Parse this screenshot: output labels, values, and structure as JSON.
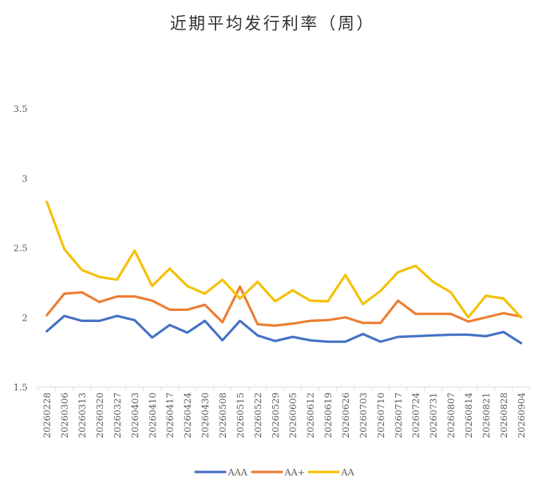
{
  "chart_data": {
    "type": "line",
    "title": "近期平均发行利率（周）",
    "xlabel": "",
    "ylabel": "",
    "ylim": [
      1.5,
      3.5
    ],
    "yticks": [
      "1.5",
      "2",
      "2.5",
      "3",
      "3.5"
    ],
    "grid": false,
    "legend_position": "bottom",
    "categories": [
      "20260228",
      "20260306",
      "20260313",
      "20260320",
      "20260327",
      "20260403",
      "20260410",
      "20260417",
      "20260424",
      "20260430",
      "20260508",
      "20260515",
      "20260522",
      "20260529",
      "20260605",
      "20260612",
      "20260619",
      "20260626",
      "20260703",
      "20260710",
      "20260717",
      "20260724",
      "20260731",
      "20260807",
      "20260814",
      "20260821",
      "20260828",
      "20260904"
    ],
    "series": [
      {
        "name": "AAA",
        "color": "#4472C4",
        "values": [
          1.9,
          2.01,
          1.975,
          1.975,
          2.01,
          1.98,
          1.855,
          1.945,
          1.89,
          1.975,
          1.835,
          1.975,
          1.87,
          1.83,
          1.86,
          1.835,
          1.825,
          1.825,
          1.88,
          1.825,
          1.86,
          1.865,
          1.87,
          1.875,
          1.875,
          1.865,
          1.895,
          1.815
        ]
      },
      {
        "name": "AA+",
        "color": "#ED7D31",
        "values": [
          2.015,
          2.17,
          2.18,
          2.11,
          2.15,
          2.15,
          2.12,
          2.055,
          2.055,
          2.09,
          1.965,
          2.22,
          1.95,
          1.94,
          1.955,
          1.975,
          1.98,
          2.0,
          1.96,
          1.96,
          2.12,
          2.025,
          2.025,
          2.025,
          1.97,
          2.0,
          2.03,
          2.005
        ]
      },
      {
        "name": "AA",
        "color": "#F5C000",
        "values": [
          2.83,
          2.49,
          2.34,
          2.29,
          2.27,
          2.48,
          2.225,
          2.35,
          2.225,
          2.17,
          2.27,
          2.135,
          2.255,
          2.115,
          2.195,
          2.12,
          2.115,
          2.305,
          2.095,
          2.19,
          2.325,
          2.37,
          2.255,
          2.18,
          2.0,
          2.155,
          2.135,
          2.0
        ]
      }
    ]
  }
}
